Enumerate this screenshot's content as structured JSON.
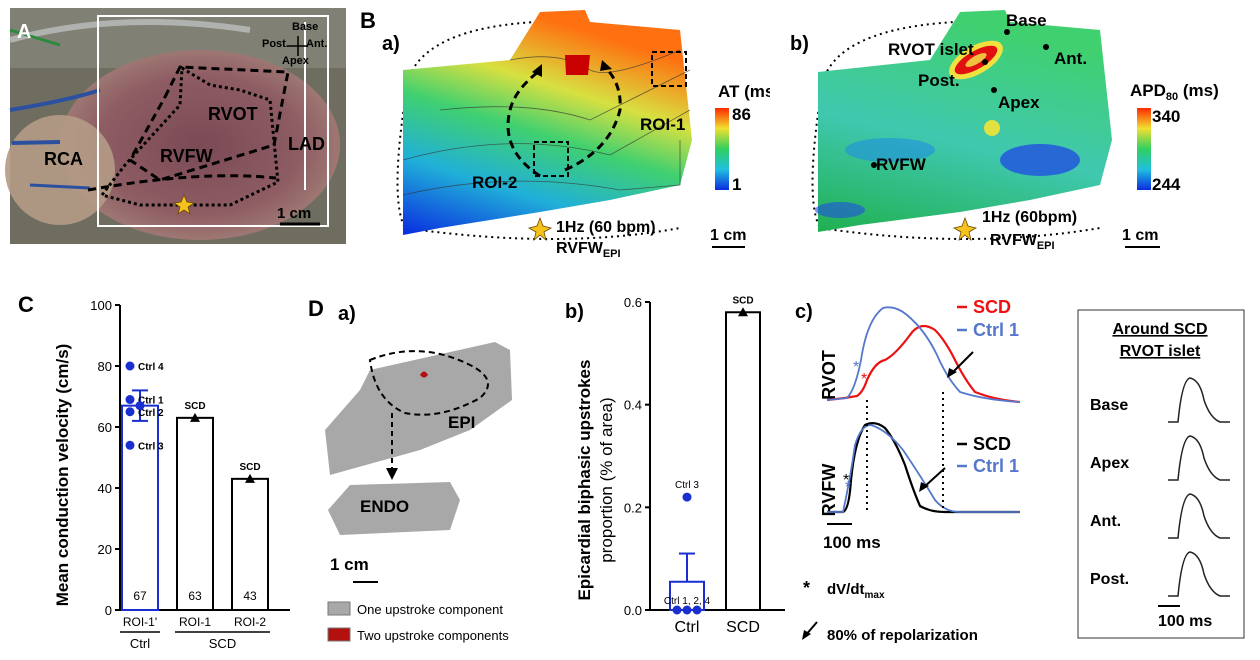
{
  "panel_labels": {
    "A": "A",
    "B": "B",
    "C": "C",
    "D": "D",
    "Ba": "a)",
    "Bb": "b)",
    "Da": "a)",
    "Db": "b)",
    "Dc": "c)"
  },
  "panel_a": {
    "orient": {
      "base": "Base",
      "post": "Post.",
      "ant": "Ant.",
      "apex": "Apex"
    },
    "labels": {
      "rvot": "RVOT",
      "rvfw": "RVFW",
      "rca": "RCA",
      "lad": "LAD"
    },
    "scale": "1 cm"
  },
  "panel_ba": {
    "title": "AT (ms)",
    "max": "86",
    "min": "1",
    "roi1": "ROI-1",
    "roi2": "ROI-2",
    "pace": "1Hz (60 bpm)",
    "site_main": "RVFW",
    "site_sub": "EPI",
    "scale": "1 cm",
    "colors": [
      "#ff2a00",
      "#ffa020",
      "#f0e040",
      "#50d060",
      "#20b0d0",
      "#1060e0"
    ]
  },
  "panel_bb": {
    "title_main": "APD",
    "title_sub": "80",
    "title_unit": " (ms)",
    "max": "340",
    "min": "244",
    "base": "Base",
    "ant": "Ant.",
    "islet": "RVOT islet",
    "post": "Post.",
    "apex": "Apex",
    "rvfw": "RVFW",
    "pace": "1Hz (60bpm)",
    "site_main": "RVFW",
    "site_sub": "EPI",
    "scale": "1 cm"
  },
  "chart_data": [
    {
      "type": "bar",
      "ylabel": "Mean conduction velocity (cm/s)",
      "ylim": [
        0,
        100
      ],
      "yticks": [
        "0",
        "20",
        "40",
        "60",
        "80",
        "100"
      ],
      "categories": [
        "ROI-1'",
        "ROI-1",
        "ROI-2"
      ],
      "groups": [
        "Ctrl",
        "SCD"
      ],
      "values": [
        67,
        63,
        43
      ],
      "value_labels": [
        "67",
        "63",
        "43"
      ],
      "error": [
        5,
        0,
        0
      ],
      "points": [
        {
          "label": "Ctrl 4",
          "y": 80
        },
        {
          "label": "Ctrl 1",
          "y": 69
        },
        {
          "label": "Ctrl 2",
          "y": 65
        },
        {
          "label": "Ctrl 3",
          "y": 54
        }
      ],
      "marker_labels": [
        "SCD",
        "SCD"
      ],
      "colors": {
        "ctrl": "#1a2fd0",
        "scd": "#000000"
      }
    },
    {
      "type": "bar",
      "ylabel_line1": "Epicardial biphasic upstrokes",
      "ylabel_line2": "proportion (% of area)",
      "ylim": [
        0,
        0.6
      ],
      "yticks": [
        "0.0",
        "0.2",
        "0.4",
        "0.6"
      ],
      "categories": [
        "Ctrl",
        "SCD"
      ],
      "values": [
        0.055,
        0.58
      ],
      "error": [
        0.055,
        0
      ],
      "points": [
        {
          "label": "Ctrl 3",
          "y": 0.22
        },
        {
          "label": "Ctrl 1, 2, 4",
          "y": 0
        }
      ],
      "marker_label": "SCD"
    },
    {
      "type": "line",
      "panel": "c)",
      "groups": [
        {
          "name": "RVOT",
          "series": [
            {
              "name": "SCD",
              "color": "#ee1111"
            },
            {
              "name": "Ctrl 1",
              "color": "#5577cc"
            }
          ]
        },
        {
          "name": "RVFW",
          "series": [
            {
              "name": "SCD",
              "color": "#000000"
            },
            {
              "name": "Ctrl 1",
              "color": "#5577cc"
            }
          ]
        }
      ],
      "scale": "100 ms",
      "legend_star": "*",
      "legend_star_text_main": "dV/dt",
      "legend_star_text_sub": "max",
      "legend_arrow_text": "80% of repolarization"
    }
  ],
  "panel_da": {
    "epi": "EPI",
    "endo": "ENDO",
    "scale": "1 cm",
    "legend": [
      {
        "label": "One upstroke component",
        "color": "#a8a8a8"
      },
      {
        "label": "Two upstroke components",
        "color": "#b31010"
      }
    ]
  },
  "inset": {
    "title1": "Around SCD",
    "title2": "RVOT islet",
    "rows": [
      "Base",
      "Apex",
      "Ant.",
      "Post."
    ],
    "scale": "100 ms"
  }
}
